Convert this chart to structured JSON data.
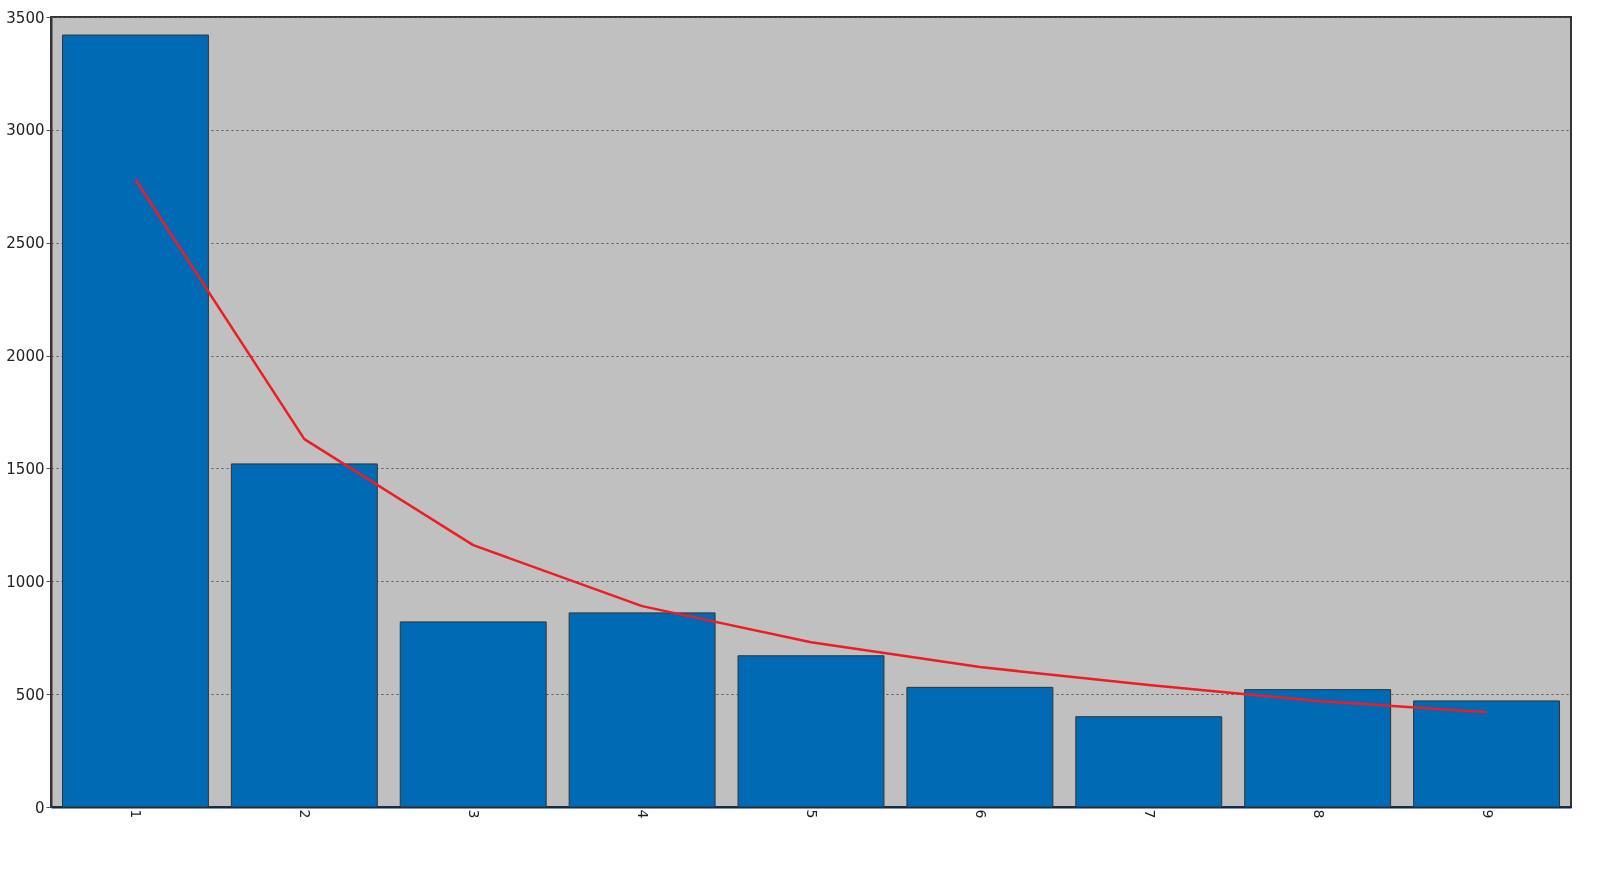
{
  "chart_data": {
    "type": "bar",
    "categories": [
      "1",
      "2",
      "3",
      "4",
      "5",
      "6",
      "7",
      "8",
      "9"
    ],
    "series": [
      {
        "color": "#006ab4",
        "values": [
          3420,
          1520,
          820,
          860,
          670,
          530,
          400,
          520,
          470
        ]
      },
      {
        "type": "line",
        "color": "#ee1c24",
        "values": [
          2780,
          1630,
          1160,
          890,
          730,
          620,
          540,
          470,
          420
        ]
      }
    ],
    "ylim": [
      0,
      3500
    ],
    "yticks": [
      0,
      500,
      1000,
      1500,
      2000,
      2500,
      3000,
      3500
    ],
    "grid": "y",
    "marker": "none",
    "line_style": "solid"
  }
}
